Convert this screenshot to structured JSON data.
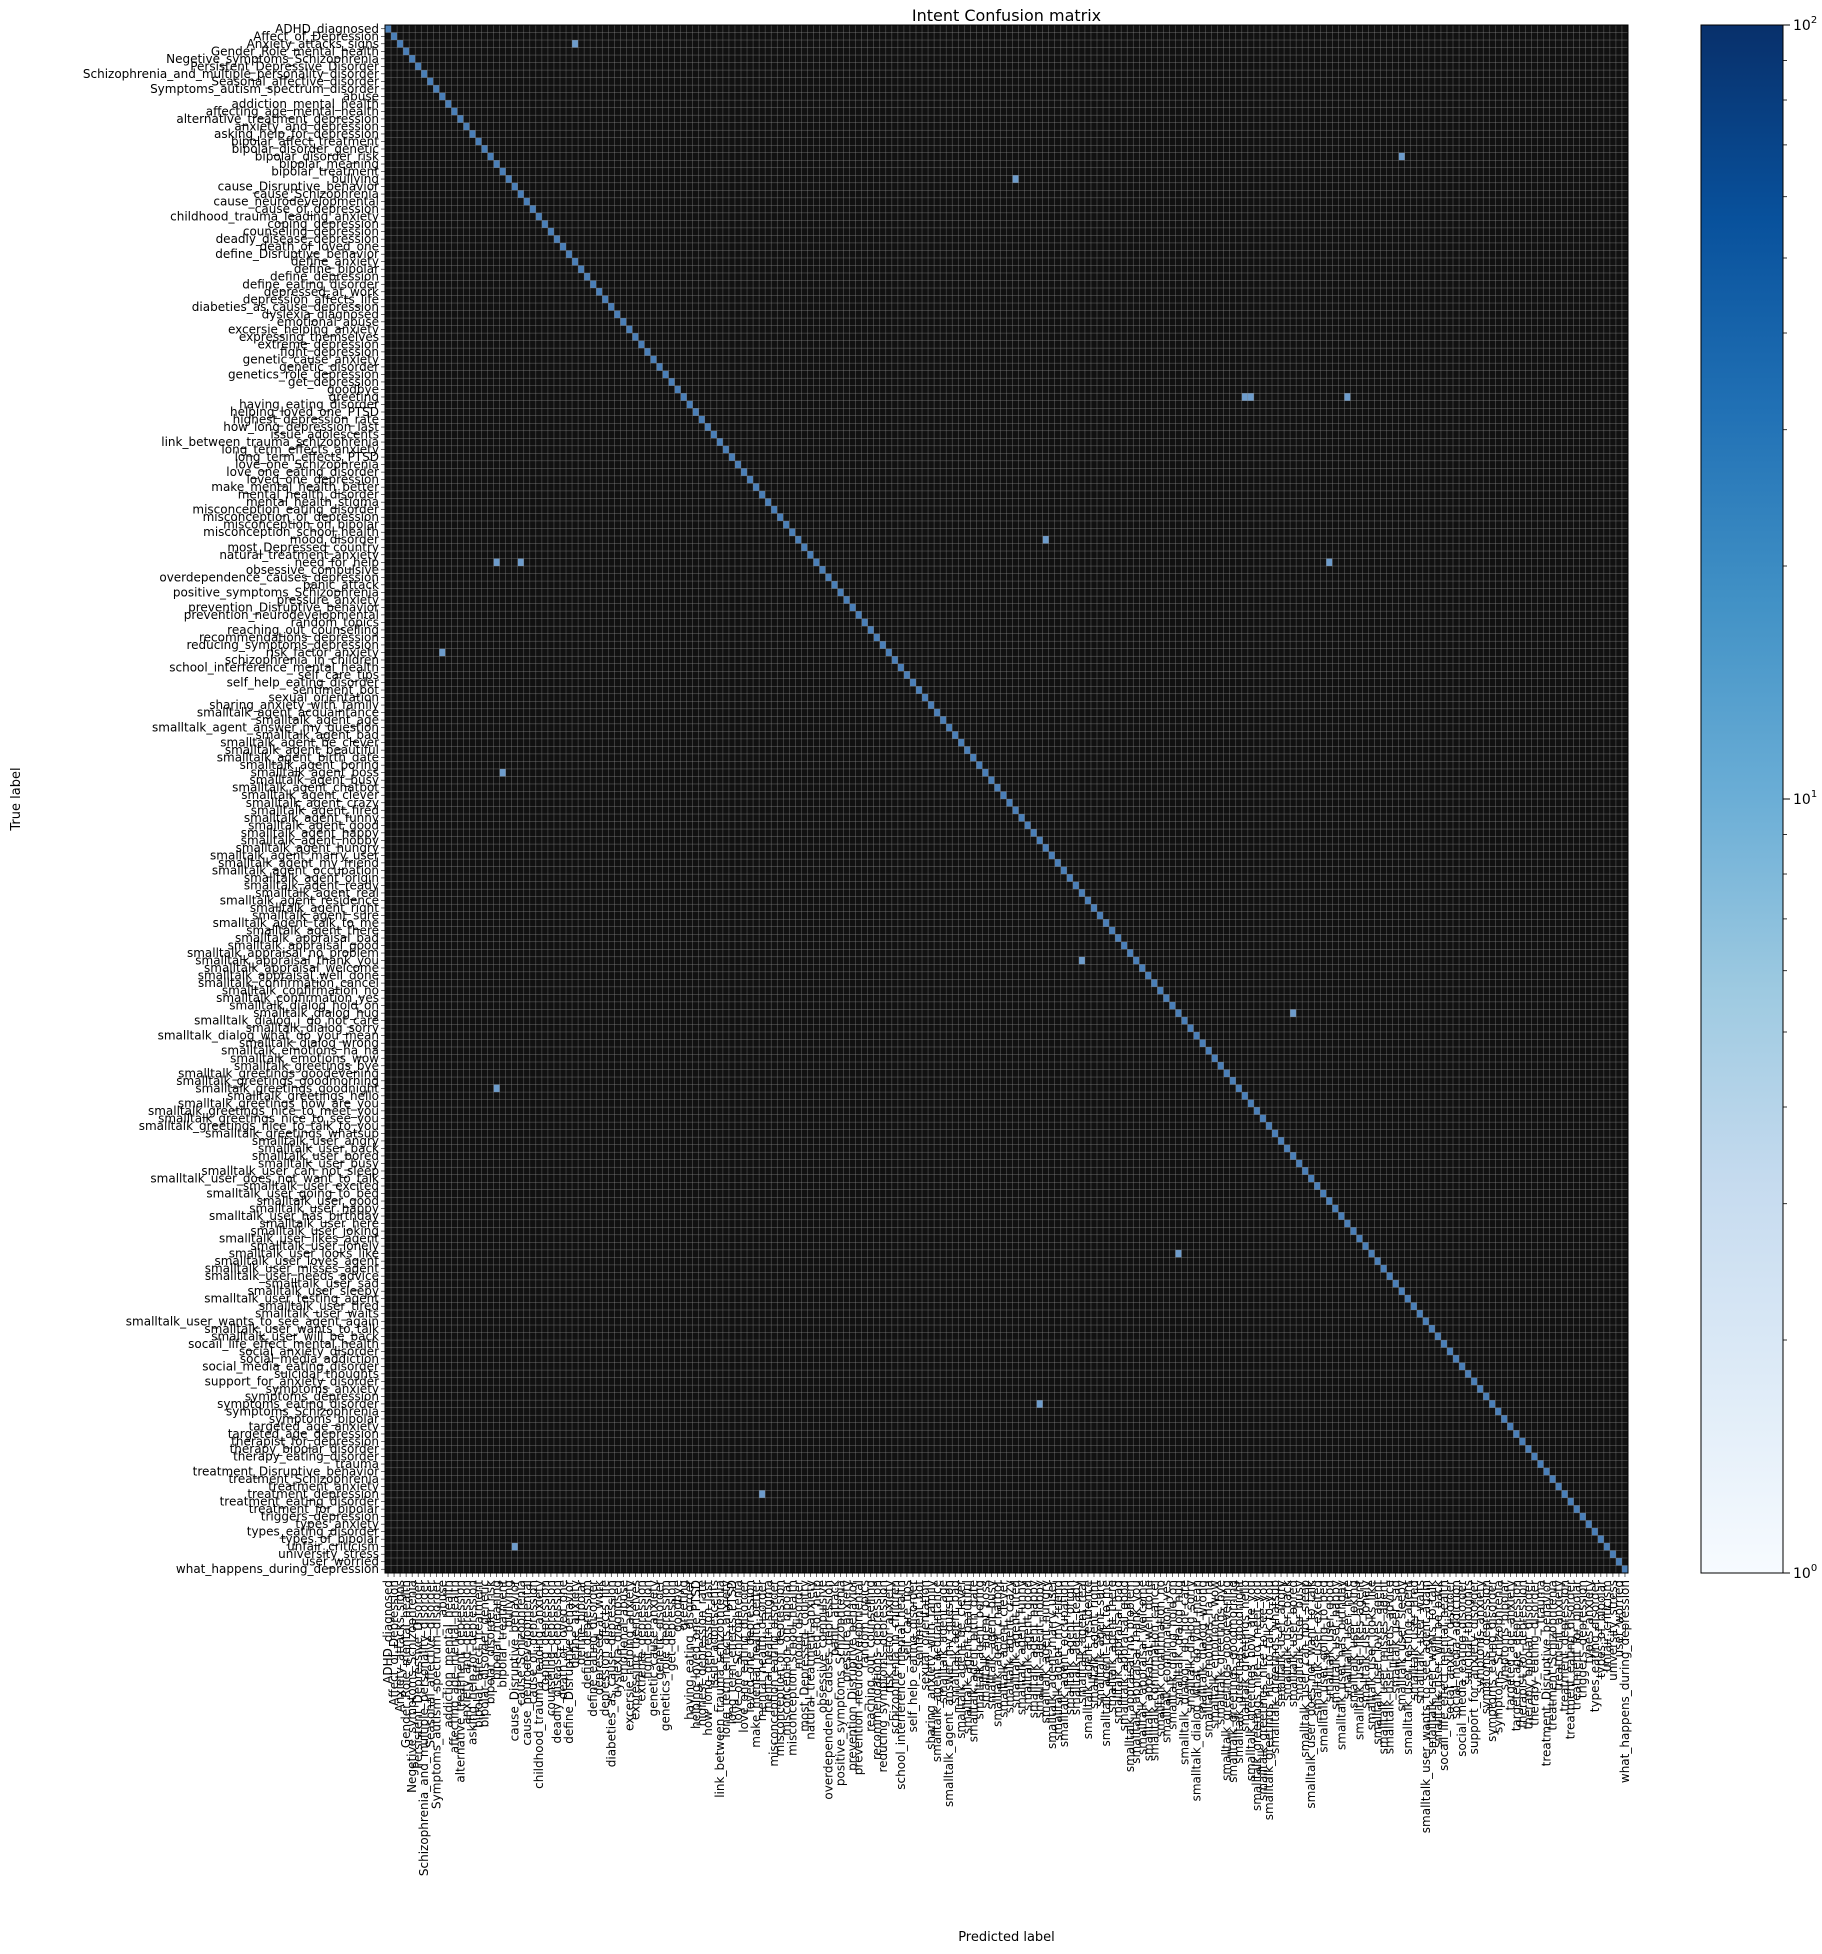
{
  "chart_data": {
    "type": "heatmap",
    "title": "Intent Confusion matrix",
    "xlabel": "Predicted label",
    "ylabel": "True label",
    "colormap": "Blues",
    "color_scale": "log",
    "colorbar_range": [
      1,
      100
    ],
    "colorbar_ticks": [
      {
        "base": "10",
        "exp": "0",
        "value": 1
      },
      {
        "base": "10",
        "exp": "1",
        "value": 10
      },
      {
        "base": "10",
        "exp": "2",
        "value": 100
      }
    ],
    "cell_background": "#111111",
    "grid": true,
    "categories": [
      "ADHD_diagnosed",
      "Affect_of_Depression",
      "Anxiety_attacks_signs",
      "Gender_Role_mental_health",
      "Negetive_symptoms_Schizophrenia",
      "Persistent_Depressive_Disorder",
      "Schizophrenia_and_multiple_personality_disorder",
      "Seasonal_affective_disorder",
      "Symptoms_autism_spectrum_disorder",
      "abuse",
      "addiction_mental_health",
      "affecting_age_mental_health",
      "alternative_treatment_depression",
      "anxiety_and_depression",
      "asking_help_for_depression",
      "bipolar_affect_treatment",
      "bipolar_disorder_genetic",
      "bipolar_disorder_risk",
      "bipolar_meaning",
      "bipolar_treatment",
      "bullying",
      "cause_Disruptive_behavior",
      "cause_Schizophrenia",
      "cause_neurodevelopmental",
      "cause_of_depression",
      "childhood_trauma_leading_anxiety",
      "coping_depression",
      "counseling_depression",
      "deadly_disease_depression",
      "death_of_loved_one",
      "define_Disruptive_behavior",
      "define_anxiety",
      "define_bipolar",
      "define_depression",
      "define_eating_disorder",
      "depressed_at_work",
      "depression_affects_life",
      "diabeties_as_cause_depression",
      "dyslexia_diagnosed",
      "emotional_abuse",
      "excersie_helping_anxiety",
      "expressing_themselves",
      "extreme_depression",
      "fight_depression",
      "genetic_cause_anxiety",
      "genetic_disorder",
      "genetics_role_depression",
      "get_depression",
      "goodbye",
      "greeting",
      "having_eating_disorder",
      "helping_loved_one_PTSD",
      "highest_depression_rate",
      "how_long_depression_last",
      "issue_adolescents",
      "link_between_trauma_schizophrenia",
      "long_term_effects_anxiety",
      "long_term_effects_PTSD",
      "love_one_Schizophrenia",
      "love_one_eating_disorder",
      "loved_one_depression",
      "make_mental_health_better",
      "mental_health_disorder",
      "mental_health_stigma",
      "misconception_eating_disorder",
      "misconception_of_depression",
      "misconception_on_bipolar",
      "misconception_school_health",
      "mood_disorder",
      "most_Depressed_country",
      "natural_treatment_anxiety",
      "need_for_help",
      "obsessive_compulsive",
      "overdependence_causes_depression",
      "panic_attack",
      "positive_symptoms_Schizophrenia",
      "pressure_anxiety",
      "prevention_Disruptive_behavior",
      "prevention_neurodevelopmental",
      "random_topics",
      "reaching_out_counselling",
      "recommendations_depression",
      "reducing_symptoms_depression",
      "risk_factor_anxiety",
      "schizophrenia_in_children",
      "school_interference_mental_health",
      "self_care_tips",
      "self_help_eating_disorder",
      "sentiment_bot",
      "sexual_orientation",
      "sharing_anxiety_with_family",
      "smalltalk_agent_acquaintance",
      "smalltalk_agent_age",
      "smalltalk_agent_answer_my_question",
      "smalltalk_agent_bad",
      "smalltalk_agent_be_clever",
      "smalltalk_agent_beautiful",
      "smalltalk_agent_birth_date",
      "smalltalk_agent_boring",
      "smalltalk_agent_boss",
      "smalltalk_agent_busy",
      "smalltalk_agent_chatbot",
      "smalltalk_agent_clever",
      "smalltalk_agent_crazy",
      "smalltalk_agent_fired",
      "smalltalk_agent_funny",
      "smalltalk_agent_good",
      "smalltalk_agent_happy",
      "smalltalk_agent_hobby",
      "smalltalk_agent_hungry",
      "smalltalk_agent_marry_user",
      "smalltalk_agent_my_friend",
      "smalltalk_agent_occupation",
      "smalltalk_agent_origin",
      "smalltalk_agent_ready",
      "smalltalk_agent_real",
      "smalltalk_agent_residence",
      "smalltalk_agent_right",
      "smalltalk_agent_sure",
      "smalltalk_agent_talk_to_me",
      "smalltalk_agent_there",
      "smalltalk_appraisal_bad",
      "smalltalk_appraisal_good",
      "smalltalk_appraisal_no_problem",
      "smalltalk_appraisal_thank_you",
      "smalltalk_appraisal_welcome",
      "smalltalk_appraisal_well_done",
      "smalltalk_confirmation_cancel",
      "smalltalk_confirmation_no",
      "smalltalk_confirmation_yes",
      "smalltalk_dialog_hold_on",
      "smalltalk_dialog_hug",
      "smalltalk_dialog_i_do_not_care",
      "smalltalk_dialog_sorry",
      "smalltalk_dialog_what_do_you_mean",
      "smalltalk_dialog_wrong",
      "smalltalk_emotions_ha_ha",
      "smalltalk_emotions_wow",
      "smalltalk_greetings_bye",
      "smalltalk_greetings_goodevening",
      "smalltalk_greetings_goodmorning",
      "smalltalk_greetings_goodnight",
      "smalltalk_greetings_hello",
      "smalltalk_greetings_how_are_you",
      "smalltalk_greetings_nice_to_meet_you",
      "smalltalk_greetings_nice_to_see_you",
      "smalltalk_greetings_nice_to_talk_to_you",
      "smalltalk_greetings_whatsup",
      "smalltalk_user_angry",
      "smalltalk_user_back",
      "smalltalk_user_bored",
      "smalltalk_user_busy",
      "smalltalk_user_can_not_sleep",
      "smalltalk_user_does_not_want_to_talk",
      "smalltalk_user_excited",
      "smalltalk_user_going_to_bed",
      "smalltalk_user_good",
      "smalltalk_user_happy",
      "smalltalk_user_has_birthday",
      "smalltalk_user_here",
      "smalltalk_user_joking",
      "smalltalk_user_likes_agent",
      "smalltalk_user_lonely",
      "smalltalk_user_looks_like",
      "smalltalk_user_loves_agent",
      "smalltalk_user_misses_agent",
      "smalltalk_user_needs_advice",
      "smalltalk_user_sad",
      "smalltalk_user_sleepy",
      "smalltalk_user_testing_agent",
      "smalltalk_user_tired",
      "smalltalk_user_waits",
      "smalltalk_user_wants_to_see_agent_again",
      "smalltalk_user_wants_to_talk",
      "smalltalk_user_will_be_back",
      "socail_life_effect_mental_health",
      "social_anxiety_disorder",
      "social_media_addiction",
      "social_media_eating_disorder",
      "suicidal_thoughts",
      "support_for_anxiety_disorder",
      "symptoms_anxiety",
      "symptoms_depression",
      "symptoms_eating_disorder",
      "symptoms_Schizophrenia",
      "symptoms_bipolar",
      "targeted_age_anxiety",
      "targeted_age_depression",
      "therapist_for_depression",
      "therapy_bipolar_disorder",
      "therapy_eating_disorder",
      "trauma",
      "treatment_Disruptive_behavior",
      "treatment_Schizophrenia",
      "treatment_anxiety",
      "treatment_depression",
      "treatment_eating_disorder",
      "treatment_for_bipolar",
      "triggers_depression",
      "types_anxiety",
      "types_eating_disorder",
      "types_of_bipolar",
      "unfair_criticism",
      "university_stress",
      "user_worried",
      "what_happens_during_depression"
    ],
    "off_diagonal_highlights": [
      {
        "row": "Anxiety_attacks_signs",
        "col": "define_anxiety"
      },
      {
        "row": "bipolar_disorder_risk",
        "col": "smalltalk_user_sleepy"
      },
      {
        "row": "bullying",
        "col": "smalltalk_agent_fired"
      },
      {
        "row": "greeting",
        "col": "smalltalk_greetings_hello"
      },
      {
        "row": "greeting",
        "col": "smalltalk_greetings_how_are_you"
      },
      {
        "row": "greeting",
        "col": "smalltalk_user_here"
      },
      {
        "row": "mood_disorder",
        "col": "smalltalk_agent_hungry"
      },
      {
        "row": "need_for_help",
        "col": "bipolar_meaning"
      },
      {
        "row": "need_for_help",
        "col": "cause_Schizophrenia"
      },
      {
        "row": "need_for_help",
        "col": "smalltalk_user_good"
      },
      {
        "row": "risk_factor_anxiety",
        "col": "abuse"
      },
      {
        "row": "smalltalk_agent_boss",
        "col": "bipolar_treatment"
      },
      {
        "row": "smalltalk_appraisal_thank_you",
        "col": "smalltalk_agent_real"
      },
      {
        "row": "smalltalk_dialog_hug",
        "col": "smalltalk_user_bored"
      },
      {
        "row": "smalltalk_greetings_goodnight",
        "col": "bipolar_meaning"
      },
      {
        "row": "smalltalk_user_looks_like",
        "col": "smalltalk_dialog_hug"
      },
      {
        "row": "symptoms_eating_disorder",
        "col": "smalltalk_agent_hobby"
      },
      {
        "row": "treatment_depression",
        "col": "mental_health_disorder"
      },
      {
        "row": "unfair_criticism",
        "col": "cause_Disruptive_behavior"
      }
    ]
  }
}
